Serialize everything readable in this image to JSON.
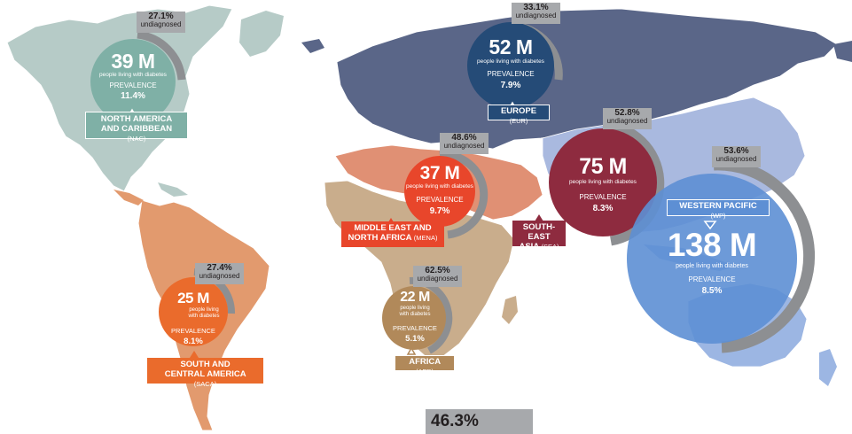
{
  "palette": {
    "nac": "#7fb0a6",
    "nac_land": "#b6cbc7",
    "saca": "#ea6b2c",
    "saca_land": "#e29a6e",
    "eur": "#254b77",
    "eur_land": "#5a6688",
    "mena": "#e8462b",
    "mena_land": "#e09074",
    "afr": "#b1895a",
    "afr_land": "#c9ad8c",
    "sea": "#8e2b3f",
    "sea_land": "#a9b9df",
    "wp": "#5d8fd4",
    "wp_land": "#9cb6e3",
    "undiagnosed_box": "#a7a9ac"
  },
  "common": {
    "people_living": "people living with diabetes",
    "people_living_short_1": "people living",
    "people_living_short_2": "with diabetes",
    "prevalence_label": "PREVALENCE",
    "undiagnosed_word": "undiagnosed"
  },
  "regions": {
    "nac": {
      "count": "39 M",
      "prevalence": "11.4%",
      "undiagnosed": "27.1%",
      "name_line1": "NORTH AMERICA",
      "name_line2": "AND CARIBBEAN",
      "code": "(NAC)"
    },
    "eur": {
      "count": "52 M",
      "prevalence": "7.9%",
      "undiagnosed": "33.1%",
      "name_line1": "EUROPE",
      "code": "(EUR)"
    },
    "mena": {
      "count": "37 M",
      "prevalence": "9.7%",
      "undiagnosed": "48.6%",
      "name_line1": "MIDDLE EAST AND",
      "name_line2": "NORTH AFRICA",
      "code": "(MENA)"
    },
    "sea": {
      "count": "75 M",
      "prevalence": "8.3%",
      "undiagnosed": "52.8%",
      "name_line1": "SOUTH-",
      "name_line2": "EAST ASIA",
      "code": "(SEA)"
    },
    "wp": {
      "count": "138 M",
      "prevalence": "8.5%",
      "undiagnosed": "53.6%",
      "name_line1": "WESTERN PACIFIC",
      "code": "(WP)"
    },
    "saca": {
      "count": "25 M",
      "prevalence": "8.1%",
      "undiagnosed": "27.4%",
      "name_line1": "SOUTH AND",
      "name_line2": "CENTRAL AMERICA",
      "code": "(SACA)"
    },
    "afr": {
      "count": "22 M",
      "prevalence": "5.1%",
      "undiagnosed": "62.5%",
      "name_line1": "AFRICA",
      "code": "(AFR)"
    }
  },
  "global_undiagnosed": "46.3%"
}
